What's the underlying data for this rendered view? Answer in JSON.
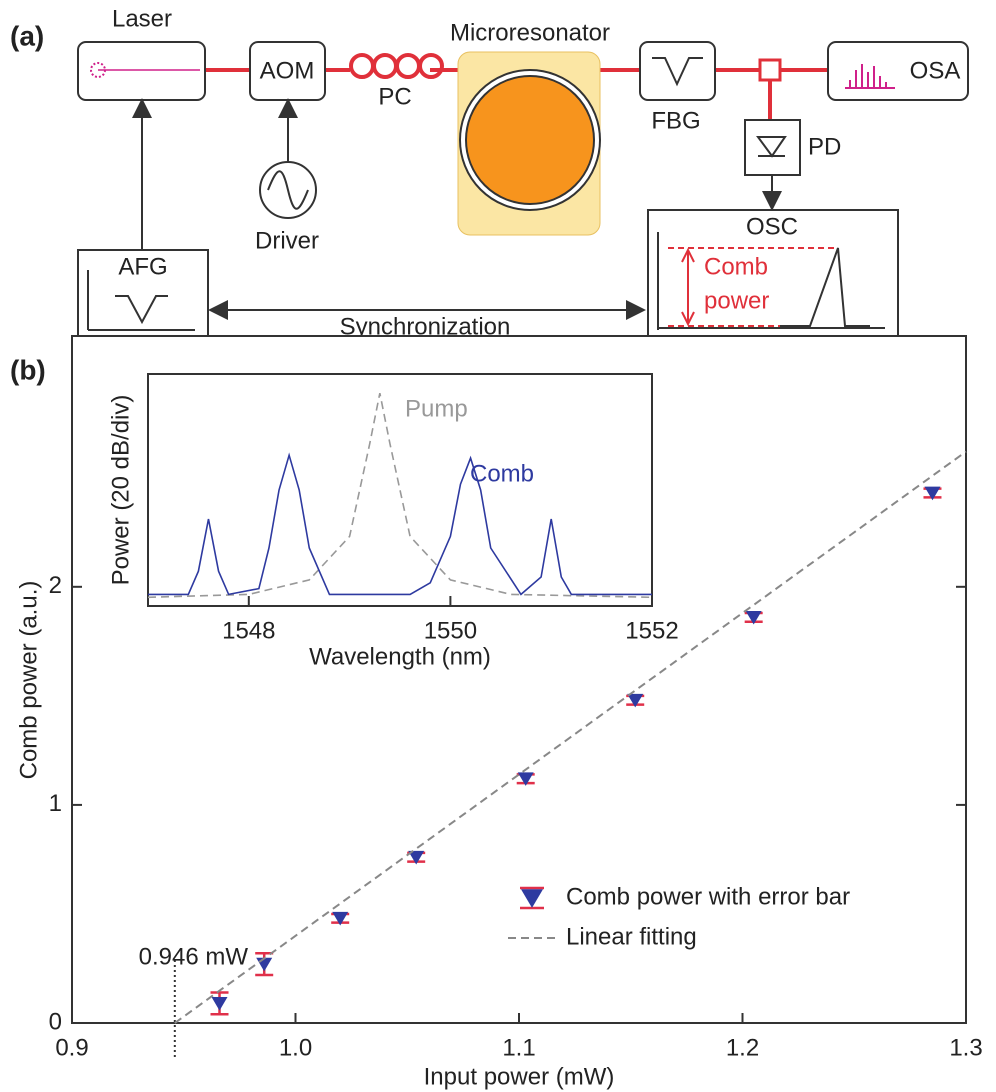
{
  "diagram": {
    "panel_a": "(a)",
    "panel_b": "(b)",
    "labels": {
      "laser": "Laser",
      "aom": "AOM",
      "pc": "PC",
      "microresonator": "Microresonator",
      "fbg": "FBG",
      "osa": "OSA",
      "pd": "PD",
      "driver": "Driver",
      "afg": "AFG",
      "osc": "OSC",
      "comb": "Comb",
      "power": "power",
      "synchronization": "Synchronization"
    }
  },
  "chart_data": [
    {
      "type": "scatter",
      "xlabel": "Input power (mW)",
      "ylabel": "Comb power (a.u.)",
      "xlim": [
        0.9,
        1.3
      ],
      "xticks": [
        0.9,
        {
          "value": 1,
          "label": "1.0"
        },
        1.1,
        1.2,
        1.3
      ],
      "ylim": [
        0,
        3.15
      ],
      "yticks": [
        0,
        1,
        2
      ],
      "series": [
        {
          "name": "Comb power with error bar",
          "color": "#2e3aa0",
          "error_color": "#e0304a",
          "x": [
            0.966,
            0.986,
            1.02,
            1.054,
            1.103,
            1.152,
            1.205,
            1.285
          ],
          "values": [
            0.09,
            0.27,
            0.48,
            0.76,
            1.12,
            1.48,
            1.86,
            2.43
          ],
          "errors": [
            0.05,
            0.05,
            0.02,
            0.02,
            0.02,
            0.02,
            0.02,
            0.02
          ]
        },
        {
          "name": "Linear fitting",
          "color": "#888888",
          "dashed": true,
          "x": [
            0.946,
            1.3
          ],
          "values": [
            0,
            2.62
          ]
        }
      ],
      "annotation": {
        "text": "0.946 mW",
        "x": 0.946
      }
    },
    {
      "type": "line",
      "xlabel": "Wavelength (nm)",
      "ylabel": "Power (20 dB/div)",
      "xlim": [
        1547,
        1552
      ],
      "xticks": [
        1548,
        1550,
        1552
      ],
      "ylim": [
        0,
        4
      ],
      "series": [
        {
          "name": "Pump",
          "color": "#999999",
          "dashed": true,
          "x": [
            1547,
            1548,
            1548.6,
            1549.0,
            1549.2,
            1549.3,
            1549.4,
            1549.6,
            1550,
            1550.6,
            1552
          ],
          "values": [
            0.15,
            0.2,
            0.45,
            1.2,
            2.8,
            3.67,
            2.8,
            1.2,
            0.45,
            0.2,
            0.15
          ]
        },
        {
          "name": "Comb",
          "color": "#2e3aa0",
          "x": [
            1547,
            1547.4,
            1547.5,
            1547.6,
            1547.7,
            1547.8,
            1548.1,
            1548.2,
            1548.3,
            1548.4,
            1548.5,
            1548.6,
            1548.8,
            1549.6,
            1549.8,
            1550.0,
            1550.1,
            1550.2,
            1550.3,
            1550.4,
            1550.7,
            1550.9,
            1551.0,
            1551.1,
            1551.2,
            1552
          ],
          "values": [
            0.2,
            0.2,
            0.6,
            1.5,
            0.6,
            0.2,
            0.3,
            1.0,
            2.0,
            2.6,
            2.0,
            1.0,
            0.2,
            0.2,
            0.4,
            1.2,
            2.1,
            2.55,
            2.0,
            1.0,
            0.2,
            0.5,
            1.5,
            0.5,
            0.2,
            0.2
          ]
        }
      ]
    }
  ]
}
